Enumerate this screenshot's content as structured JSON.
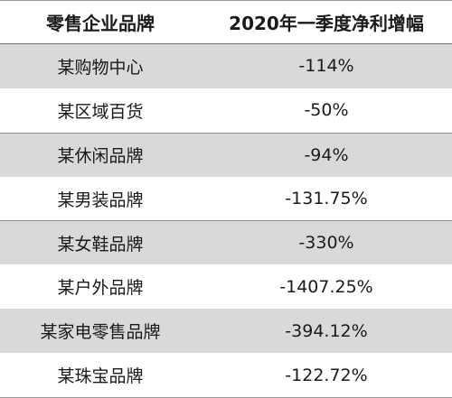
{
  "table": {
    "headers": [
      "零售企业品牌",
      "2020年一季度净利增幅"
    ],
    "rows": [
      {
        "brand": "某购物中心",
        "value": "-114%"
      },
      {
        "brand": "某区域百货",
        "value": "-50%"
      },
      {
        "brand": "某休闲品牌",
        "value": "-94%"
      },
      {
        "brand": "某男装品牌",
        "value": "-131.75%"
      },
      {
        "brand": "某女鞋品牌",
        "value": "-330%"
      },
      {
        "brand": "某户外品牌",
        "value": "-1407.25%"
      },
      {
        "brand": "某家电零售品牌",
        "value": "-394.12%"
      },
      {
        "brand": "某珠宝品牌",
        "value": "-122.72%"
      }
    ]
  },
  "colors": {
    "shaded_row": "#d9d9d9",
    "text": "#1a1a1a"
  }
}
